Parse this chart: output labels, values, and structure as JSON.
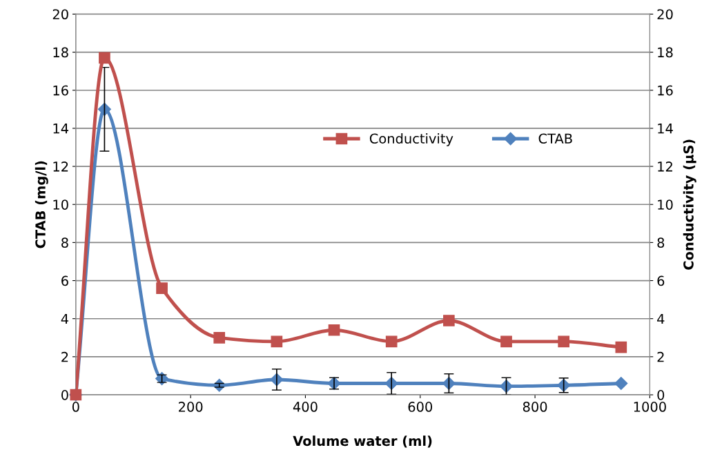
{
  "chart_data": {
    "type": "line",
    "xlabel": "Volume water (ml)",
    "ylabel": "CTAB (mg/l)",
    "y2label": "Conductivity (µS)",
    "x": [
      0,
      50,
      150,
      250,
      350,
      450,
      550,
      650,
      750,
      850,
      950
    ],
    "series": [
      {
        "name": "Conductivity",
        "color": "#c0504d",
        "axis": "y2",
        "marker": "square",
        "values": [
          0,
          17.7,
          5.6,
          3.0,
          2.8,
          3.4,
          2.8,
          3.9,
          2.8,
          2.8,
          2.5
        ]
      },
      {
        "name": "CTAB",
        "color": "#4f81bd",
        "axis": "y",
        "marker": "diamond",
        "values": [
          0,
          15.0,
          0.85,
          0.5,
          0.8,
          0.6,
          0.6,
          0.6,
          0.45,
          0.5,
          0.6
        ],
        "errors": [
          null,
          2.2,
          0.2,
          0.1,
          0.55,
          0.3,
          0.57,
          0.5,
          0.45,
          0.38,
          null
        ]
      }
    ],
    "xlim": [
      0,
      1000
    ],
    "xticks": [
      0,
      200,
      400,
      600,
      800,
      1000
    ],
    "ylim": [
      0,
      20
    ],
    "yticks": [
      0,
      2,
      4,
      6,
      8,
      10,
      12,
      14,
      16,
      18,
      20
    ],
    "y2lim": [
      0,
      20
    ],
    "y2ticks": [
      0,
      2,
      4,
      6,
      8,
      10,
      12,
      14,
      16,
      18,
      20
    ],
    "grid": "y",
    "legend": "right",
    "line_style": "solid"
  }
}
